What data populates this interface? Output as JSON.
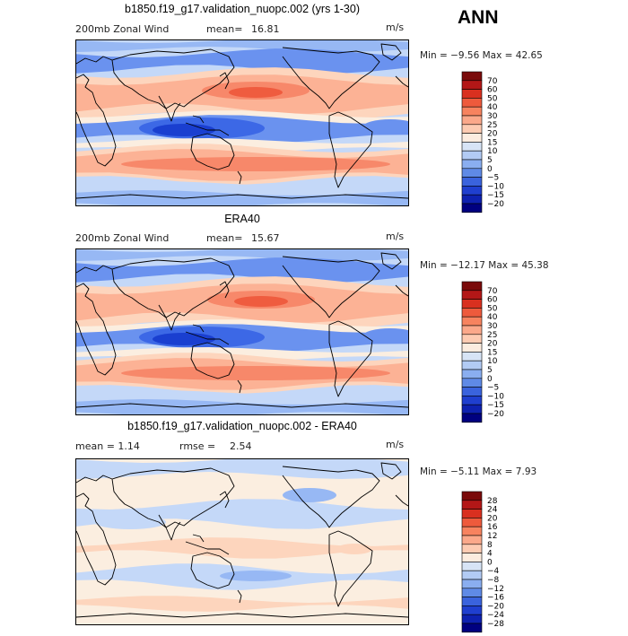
{
  "season": "ANN",
  "panels": [
    {
      "title": "b1850.f19_g17.validation_nuopc.002 (yrs 1-30)",
      "left_label": "200mb Zonal Wind",
      "mean_label": "mean=",
      "mean_value": "16.81",
      "units": "m/s",
      "min_max_text": "Min =  −9.56 Max =  42.65",
      "colorbar_labels": [
        "70",
        "60",
        "50",
        "40",
        "30",
        "25",
        "20",
        "15",
        "10",
        "5",
        "0",
        "−5",
        "−10",
        "−15",
        "−20"
      ]
    },
    {
      "title": "ERA40",
      "left_label": "200mb Zonal Wind",
      "mean_label": "mean=",
      "mean_value": "15.67",
      "units": "m/s",
      "min_max_text": "Min = −12.17 Max =  45.38",
      "colorbar_labels": [
        "70",
        "60",
        "50",
        "40",
        "30",
        "25",
        "20",
        "15",
        "10",
        "5",
        "0",
        "−5",
        "−10",
        "−15",
        "−20"
      ]
    },
    {
      "title": "b1850.f19_g17.validation_nuopc.002 - ERA40",
      "left_label": "mean =   1.14",
      "mean_label": "rmse =",
      "mean_value": "2.54",
      "units": "m/s",
      "min_max_text": "Min =  −5.11 Max =   7.93",
      "colorbar_labels": [
        "28",
        "24",
        "20",
        "16",
        "12",
        "8",
        "4",
        "0",
        "−4",
        "−8",
        "−12",
        "−16",
        "−20",
        "−24",
        "−28"
      ]
    }
  ],
  "colors": {
    "field_colors": [
      "#0a0a7a",
      "#1a3fd0",
      "#3c68e6",
      "#6a92ef",
      "#97b8f4",
      "#c4d8f8",
      "#fbeee0",
      "#fdd5bd",
      "#fcb295",
      "#f7886a",
      "#ef5c3f",
      "#d92e21",
      "#9b0b0b"
    ]
  }
}
